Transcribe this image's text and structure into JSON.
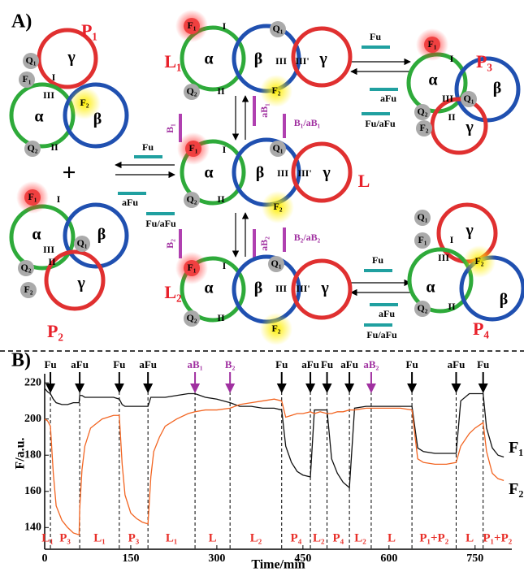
{
  "panel_a": {
    "label": "A)",
    "plus": "+",
    "complexes": [
      {
        "labels": [
          "P₁",
          "γ",
          "α",
          "β",
          "Q₁",
          "F₁",
          "I",
          "III",
          "F₂",
          "Q₂",
          "II"
        ]
      },
      {
        "labels": [
          "F₁",
          "I",
          "α",
          "III",
          "β",
          "Q₁",
          "Q₂",
          "II",
          "F₂",
          "γ",
          "P₂"
        ]
      },
      {
        "labels": [
          "L₁",
          "F₁",
          "I",
          "α",
          "β",
          "III",
          "III'",
          "γ",
          "Q₁",
          "Q₂",
          "II",
          "F₂"
        ]
      },
      {
        "labels": [
          "F₁",
          "I",
          "α",
          "β",
          "III",
          "III'",
          "γ",
          "Q₁",
          "Q₂",
          "II",
          "F₂",
          "L"
        ]
      },
      {
        "labels": [
          "F₁",
          "I",
          "α",
          "β",
          "III",
          "III'",
          "γ",
          "Q₁",
          "Q₂",
          "II",
          "F₂",
          "L₂"
        ]
      },
      {
        "labels": [
          "F₁",
          "I",
          "P₃",
          "α",
          "β",
          "Q₁",
          "III",
          "Q₂",
          "II",
          "F₂",
          "γ"
        ]
      },
      {
        "labels": [
          "γ",
          "Q₁",
          "F₁",
          "I",
          "III",
          "F₂",
          "α",
          "β",
          "Q₂",
          "II",
          "P₄"
        ]
      }
    ],
    "reagents": [
      "Fu",
      "aFu",
      "Fu/aFu",
      "Fu",
      "aFu",
      "Fu/aFu",
      "Fu",
      "aFu",
      "Fu/aFu",
      "B₁",
      "aB₁",
      "B₁/aB₁",
      "B₂",
      "aB₂",
      "B₂/aB₂"
    ]
  },
  "chart_data": {
    "type": "line",
    "panel_label": "B)",
    "xlabel": "Time/min",
    "ylabel": "F/a.u.",
    "xlim": [
      0,
      814
    ],
    "ylim": [
      128,
      234
    ],
    "xticks": [
      0,
      150,
      300,
      450,
      600,
      750
    ],
    "yticks": [
      140,
      160,
      180,
      200,
      220
    ],
    "x": [
      0,
      5,
      10,
      15,
      20,
      30,
      40,
      50,
      60,
      61,
      65,
      70,
      80,
      100,
      120,
      130,
      135,
      140,
      150,
      160,
      170,
      180,
      185,
      190,
      200,
      210,
      230,
      250,
      262,
      280,
      300,
      323,
      340,
      360,
      380,
      400,
      413,
      420,
      430,
      440,
      450,
      463,
      470,
      480,
      492,
      500,
      510,
      520,
      531,
      540,
      560,
      580,
      600,
      620,
      640,
      650,
      660,
      680,
      700,
      717,
      725,
      740,
      750,
      764,
      770,
      780,
      790,
      800
    ],
    "series": [
      {
        "name": "F₁",
        "color": "#111111",
        "values": [
          217,
          215,
          214,
          211,
          209,
          208,
          208,
          209,
          209,
          213,
          213,
          212,
          212,
          212,
          212,
          211,
          208,
          207,
          207,
          207,
          207,
          207,
          212,
          212,
          212,
          212,
          213,
          214,
          214,
          212,
          211,
          209,
          207,
          207,
          206,
          206,
          205,
          185,
          176,
          171,
          169,
          168,
          205,
          205,
          205,
          178,
          170,
          165,
          162,
          206,
          207,
          207,
          207,
          207,
          207,
          184,
          182,
          181,
          181,
          181,
          210,
          214,
          214,
          214,
          195,
          184,
          180,
          179
        ]
      },
      {
        "name": "F₂",
        "color": "#f26522",
        "values": [
          200,
          199,
          196,
          170,
          152,
          144,
          140,
          137,
          136,
          150,
          172,
          185,
          195,
          200,
          202,
          202,
          175,
          158,
          148,
          145,
          143,
          142,
          168,
          182,
          190,
          196,
          200,
          203,
          204,
          205,
          205,
          206,
          208,
          209,
          210,
          211,
          210,
          201,
          202,
          203,
          203,
          204,
          203,
          204,
          203,
          203,
          204,
          204,
          205,
          205,
          206,
          206,
          206,
          206,
          205,
          178,
          176,
          175,
          175,
          176,
          185,
          192,
          195,
          198,
          182,
          170,
          167,
          166
        ]
      }
    ],
    "events": [
      {
        "x": 10,
        "label": "Fu",
        "color": "#000000"
      },
      {
        "x": 61,
        "label": "aFu",
        "color": "#000000"
      },
      {
        "x": 130,
        "label": "Fu",
        "color": "#000000"
      },
      {
        "x": 180,
        "label": "aFu",
        "color": "#000000"
      },
      {
        "x": 262,
        "label": "aB₁",
        "color": "#a030a0"
      },
      {
        "x": 323,
        "label": "B₂",
        "color": "#a030a0"
      },
      {
        "x": 413,
        "label": "Fu",
        "color": "#000000"
      },
      {
        "x": 463,
        "label": "aFu",
        "color": "#000000"
      },
      {
        "x": 492,
        "label": "Fu",
        "color": "#000000"
      },
      {
        "x": 531,
        "label": "aFu",
        "color": "#000000"
      },
      {
        "x": 569,
        "label": "aB₂",
        "color": "#a030a0"
      },
      {
        "x": 640,
        "label": "Fu",
        "color": "#000000"
      },
      {
        "x": 717,
        "label": "aFu",
        "color": "#000000"
      },
      {
        "x": 764,
        "label": "Fu",
        "color": "#000000"
      }
    ],
    "states": [
      "L₁",
      "P₃",
      "L₁",
      "P₃",
      "L₁",
      "L",
      "L₂",
      "P₄",
      "L₂",
      "P₄",
      "L₂",
      "L",
      "P₁+P₂",
      "L",
      "P₁+P₂"
    ],
    "state_color": "#e8302a"
  }
}
